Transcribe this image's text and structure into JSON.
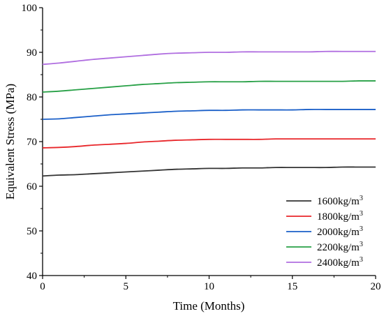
{
  "chart_data": {
    "type": "line",
    "xlabel": "Time (Months)",
    "ylabel": "Equivalent Stress (MPa)",
    "xlim": [
      0,
      20
    ],
    "ylim": [
      40,
      100
    ],
    "xticks": [
      "0",
      "5",
      "10",
      "15",
      "20"
    ],
    "yticks": [
      "40",
      "50",
      "60",
      "70",
      "80",
      "90",
      "100"
    ],
    "grid": false,
    "legend_position": "bottom-right",
    "x": [
      0,
      1,
      2,
      3,
      4,
      5,
      6,
      7,
      8,
      9,
      10,
      11,
      12,
      13,
      14,
      15,
      16,
      17,
      18,
      19,
      20
    ],
    "series": [
      {
        "name": "1600kg/m3",
        "label_base": "1600kg/m",
        "label_sup": "3",
        "color": "#333333",
        "values": [
          62.3,
          62.5,
          62.6,
          62.8,
          63.0,
          63.2,
          63.4,
          63.6,
          63.8,
          63.9,
          64.0,
          64.0,
          64.1,
          64.1,
          64.2,
          64.2,
          64.2,
          64.2,
          64.3,
          64.3,
          64.3
        ]
      },
      {
        "name": "1800kg/m3",
        "label_base": "1800kg/m",
        "label_sup": "3",
        "color": "#e8262a",
        "values": [
          68.6,
          68.7,
          68.9,
          69.2,
          69.4,
          69.6,
          69.9,
          70.1,
          70.3,
          70.4,
          70.5,
          70.5,
          70.5,
          70.5,
          70.6,
          70.6,
          70.6,
          70.6,
          70.6,
          70.6,
          70.6
        ]
      },
      {
        "name": "2000kg/m3",
        "label_base": "2000kg/m",
        "label_sup": "3",
        "color": "#1a5fc8",
        "values": [
          75.0,
          75.1,
          75.4,
          75.7,
          76.0,
          76.2,
          76.4,
          76.6,
          76.8,
          76.9,
          77.0,
          77.0,
          77.1,
          77.1,
          77.1,
          77.1,
          77.2,
          77.2,
          77.2,
          77.2,
          77.2
        ]
      },
      {
        "name": "2200kg/m3",
        "label_base": "2200kg/m",
        "label_sup": "3",
        "color": "#27a046",
        "values": [
          81.1,
          81.3,
          81.6,
          81.9,
          82.2,
          82.5,
          82.8,
          83.0,
          83.2,
          83.3,
          83.4,
          83.4,
          83.4,
          83.5,
          83.5,
          83.5,
          83.5,
          83.5,
          83.5,
          83.6,
          83.6
        ]
      },
      {
        "name": "2400kg/m3",
        "label_base": "2400kg/m",
        "label_sup": "3",
        "color": "#b06ee0",
        "values": [
          87.3,
          87.6,
          88.0,
          88.4,
          88.7,
          89.0,
          89.3,
          89.6,
          89.8,
          89.9,
          90.0,
          90.0,
          90.1,
          90.1,
          90.1,
          90.1,
          90.1,
          90.2,
          90.2,
          90.2,
          90.2
        ]
      }
    ]
  }
}
